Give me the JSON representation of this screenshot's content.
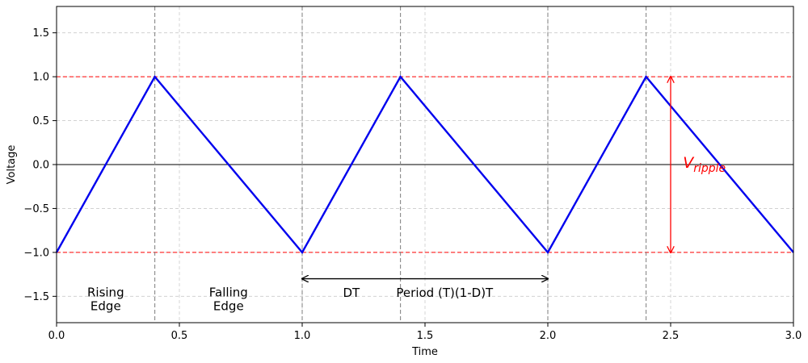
{
  "chart_data": {
    "type": "line",
    "title": "",
    "xlabel": "Time",
    "ylabel": "Voltage",
    "xlim": [
      0.0,
      3.0
    ],
    "ylim": [
      -1.8,
      1.8
    ],
    "x_ticks": [
      0.0,
      0.5,
      1.0,
      1.5,
      2.0,
      2.5,
      3.0
    ],
    "x_tick_labels": [
      "0.0",
      "0.5",
      "1.0",
      "1.5",
      "2.0",
      "2.5",
      "3.0"
    ],
    "y_ticks": [
      1.5,
      1.0,
      0.5,
      0.0,
      -0.5,
      -1.0,
      -1.5
    ],
    "y_tick_labels": [
      "1.5",
      "1.0",
      "0.5",
      "0.0",
      "−0.5",
      "−1.0",
      "−1.5"
    ],
    "grid": true,
    "series": [
      {
        "name": "",
        "color": "#0000ee",
        "x": [
          0.0,
          0.4,
          1.0,
          1.4,
          2.0,
          2.4,
          3.0
        ],
        "y": [
          -1.0,
          1.0,
          -1.0,
          1.0,
          -1.0,
          1.0,
          -1.0
        ]
      }
    ],
    "horizontal_lines": [
      {
        "y": 1.0,
        "color": "#ff0000",
        "style": "dashed"
      },
      {
        "y": -1.0,
        "color": "#ff0000",
        "style": "dashed"
      },
      {
        "y": 0.0,
        "color": "#000000",
        "style": "solid"
      }
    ],
    "vertical_lines": [
      {
        "x": 0.4,
        "color": "#888888",
        "style": "dashed"
      },
      {
        "x": 1.0,
        "color": "#888888",
        "style": "dashed"
      },
      {
        "x": 1.4,
        "color": "#888888",
        "style": "dashed"
      },
      {
        "x": 2.0,
        "color": "#888888",
        "style": "dashed"
      },
      {
        "x": 2.4,
        "color": "#888888",
        "style": "dashed"
      }
    ],
    "annotations": {
      "rising_edge": {
        "line1": "Rising",
        "line2": "Edge",
        "x": 0.2,
        "y": -1.5
      },
      "falling_edge": {
        "line1": "Falling",
        "line2": "Edge",
        "x": 0.7,
        "y": -1.5
      },
      "dt": {
        "text": "DT",
        "x": 1.2,
        "y": -1.47
      },
      "period": {
        "text": "Period (T)(1-D)T",
        "x": 1.58,
        "y": -1.47
      },
      "period_arrow": {
        "x1": 1.0,
        "x2": 2.0,
        "y": -1.3,
        "color": "#000000"
      },
      "ripple_arrow": {
        "x": 2.5,
        "y1": -1.0,
        "y2": 1.0,
        "color": "#ff0000"
      },
      "ripple": {
        "main": "V",
        "sub": "ripple",
        "x": 2.55,
        "y": 0.0
      }
    }
  }
}
